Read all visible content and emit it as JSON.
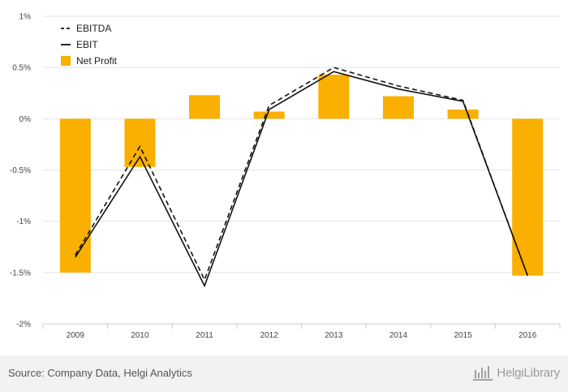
{
  "chart_data": {
    "type": "bar",
    "title": "",
    "xlabel": "",
    "ylabel": "",
    "categories": [
      "2009",
      "2010",
      "2011",
      "2012",
      "2013",
      "2014",
      "2015",
      "2016"
    ],
    "ylim": [
      -2,
      1
    ],
    "y_ticks": [
      1,
      0.5,
      0,
      -0.5,
      -1,
      -1.5,
      -2
    ],
    "y_tick_labels": [
      "1%",
      "0.5%",
      "0%",
      "-0.5%",
      "-1%",
      "-1.5%",
      "-2%"
    ],
    "grid": true,
    "legend_position": "top-left",
    "series": [
      {
        "name": "EBITDA",
        "type": "line",
        "style": "dashed",
        "color": "#111111",
        "values": [
          -1.33,
          -0.27,
          -1.57,
          0.13,
          0.5,
          0.32,
          0.18,
          -1.53
        ]
      },
      {
        "name": "EBIT",
        "type": "line",
        "style": "solid",
        "color": "#111111",
        "values": [
          -1.35,
          -0.37,
          -1.63,
          0.09,
          0.46,
          0.29,
          0.17,
          -1.53
        ]
      },
      {
        "name": "Net Profit",
        "type": "bar",
        "color": "#F9B000",
        "values": [
          -1.5,
          -0.47,
          0.23,
          0.07,
          0.43,
          0.22,
          0.09,
          -1.53
        ]
      }
    ]
  },
  "footer": {
    "source": "Source: Company Data, Helgi Analytics",
    "brand": "HelgiLibrary"
  }
}
